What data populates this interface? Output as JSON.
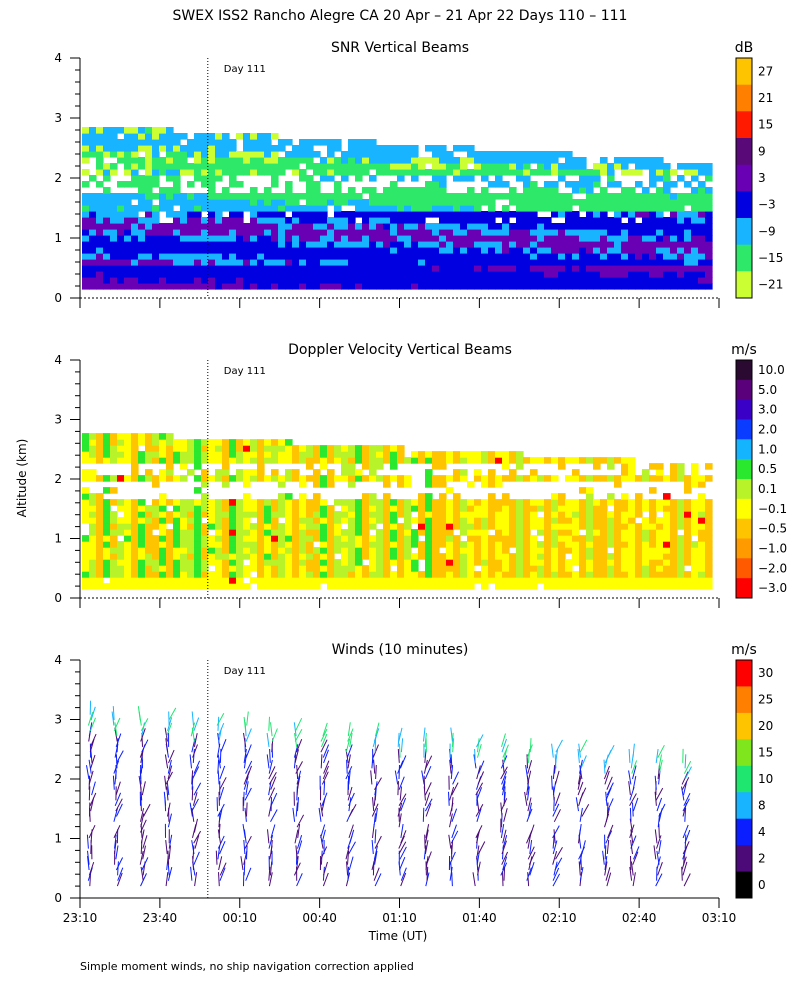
{
  "figure": {
    "title": "SWEX ISS2 Rancho Alegre CA  20 Apr – 21 Apr 22 Days 110 – 111",
    "ylabel": "Altitude (km)",
    "xlabel": "Time (UT)",
    "footnote": "Simple moment winds, no ship navigation correction applied",
    "day_marker": "Day 111",
    "x_ticks": [
      "23:10",
      "23:40",
      "00:10",
      "00:40",
      "01:10",
      "01:40",
      "02:10",
      "02:40",
      "03:10"
    ],
    "y_ticks": [
      "0",
      "1",
      "2",
      "3",
      "4"
    ]
  },
  "chart_data": [
    {
      "type": "heatmap",
      "title": "SNR Vertical Beams",
      "unit": "dB",
      "ylim": [
        0,
        4
      ],
      "x_range": [
        "23:10",
        "03:10"
      ],
      "day_marker_time": "23:58",
      "colorbar_ticks": [
        "27",
        "21",
        "15",
        "9",
        "3",
        "−3",
        "−9",
        "−15",
        "−21"
      ],
      "colorbar_colors": [
        "#ffc400",
        "#ff7f00",
        "#ff1a00",
        "#5a0a78",
        "#6a00b4",
        "#0000e0",
        "#19b4ff",
        "#2ee86a",
        "#cbff33"
      ]
    },
    {
      "type": "heatmap",
      "title": "Doppler Velocity Vertical Beams",
      "unit": "m/s",
      "ylim": [
        0,
        4
      ],
      "x_range": [
        "23:10",
        "03:10"
      ],
      "day_marker_time": "23:58",
      "colorbar_ticks": [
        "10.0",
        "5.0",
        "3.0",
        "2.0",
        "1.0",
        "0.5",
        "0.1",
        "−0.1",
        "−0.5",
        "−1.0",
        "−2.0",
        "−3.0"
      ],
      "colorbar_colors": [
        "#2a0a30",
        "#5a007a",
        "#3a00c8",
        "#0a3cff",
        "#14b4ff",
        "#29e82e",
        "#b8f229",
        "#ffff00",
        "#ffc400",
        "#ff9a00",
        "#ff5a00",
        "#ff0000"
      ]
    },
    {
      "type": "scatter",
      "title": "Winds (10 minutes)",
      "unit": "m/s",
      "ylim": [
        0,
        4
      ],
      "x_range": [
        "23:10",
        "03:10"
      ],
      "day_marker_time": "23:58",
      "colorbar_ticks": [
        "30",
        "25",
        "20",
        "15",
        "10",
        "8",
        "4",
        "2",
        "0"
      ],
      "colorbar_colors": [
        "#ff0000",
        "#ff7f00",
        "#ffc400",
        "#7fe61e",
        "#1ee66e",
        "#19b4ff",
        "#0a1eff",
        "#4b0a78",
        "#000000"
      ]
    }
  ]
}
